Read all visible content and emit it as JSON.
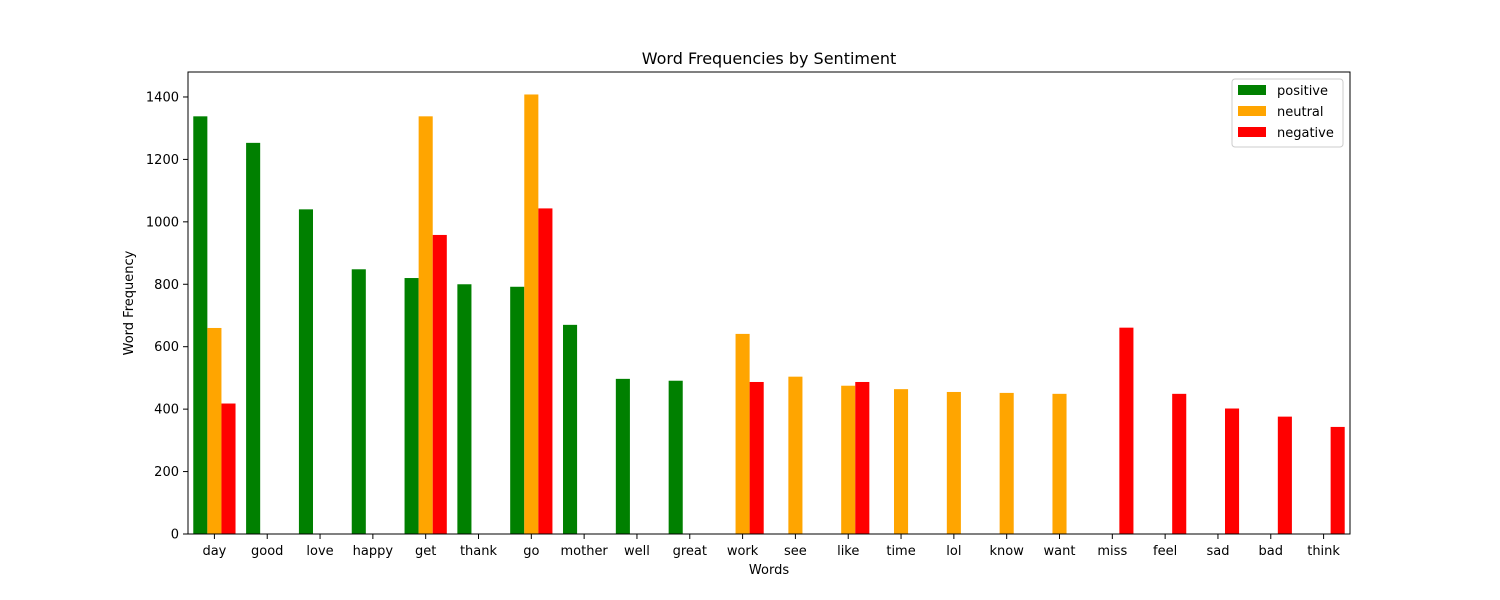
{
  "chart_data": {
    "type": "bar",
    "title": "Word Frequencies by Sentiment",
    "xlabel": "Words",
    "ylabel": "Word Frequency",
    "ylim": [
      0,
      1480
    ],
    "yticks": [
      0,
      200,
      400,
      600,
      800,
      1000,
      1200,
      1400
    ],
    "grid": false,
    "legend_position": "top-right",
    "categories": [
      "day",
      "good",
      "love",
      "happy",
      "get",
      "thank",
      "go",
      "mother",
      "well",
      "great",
      "work",
      "see",
      "like",
      "time",
      "lol",
      "know",
      "want",
      "miss",
      "feel",
      "sad",
      "bad",
      "think"
    ],
    "series": [
      {
        "name": "positive",
        "color": "#008000",
        "values": [
          1338,
          1253,
          1040,
          848,
          820,
          800,
          792,
          670,
          497,
          491,
          null,
          null,
          null,
          null,
          null,
          null,
          null,
          null,
          null,
          null,
          null,
          null
        ]
      },
      {
        "name": "neutral",
        "color": "#ffa500",
        "values": [
          660,
          null,
          null,
          null,
          1338,
          null,
          1408,
          null,
          null,
          null,
          641,
          504,
          475,
          464,
          455,
          452,
          449,
          null,
          null,
          null,
          null,
          null
        ]
      },
      {
        "name": "negative",
        "color": "#ff0000",
        "values": [
          418,
          null,
          null,
          null,
          958,
          null,
          1043,
          null,
          null,
          null,
          487,
          null,
          487,
          null,
          null,
          null,
          null,
          661,
          449,
          402,
          376,
          343
        ]
      }
    ]
  }
}
